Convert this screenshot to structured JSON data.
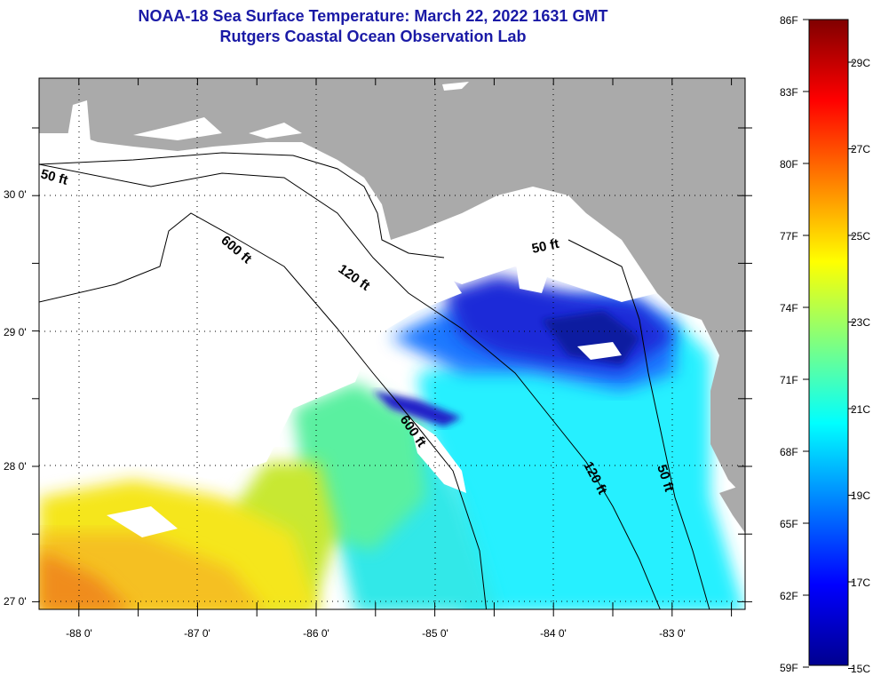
{
  "title": {
    "line1": "NOAA-18 Sea Surface Temperature:  March 22, 2022 1631 GMT",
    "line2": "Rutgers Coastal Ocean Observation Lab"
  },
  "map": {
    "lat_labels": [
      "30 0'",
      "29 0'",
      "28 0'",
      "27 0'"
    ],
    "lon_labels": [
      "-88 0'",
      "-87 0'",
      "-86 0'",
      "-85 0'",
      "-84 0'",
      "-83 0'"
    ],
    "contour_labels": [
      "50 ft",
      "600 ft",
      "120 ft",
      "50 ft",
      "600 ft",
      "120 ft",
      "50 ft"
    ],
    "land_color": "#aaaaaa",
    "cloud_color": "#ffffff"
  },
  "colorbar": {
    "f_labels": [
      "86F",
      "83F",
      "80F",
      "77F",
      "74F",
      "71F",
      "68F",
      "65F",
      "62F",
      "59F"
    ],
    "c_labels": [
      "29C",
      "27C",
      "25C",
      "23C",
      "21C",
      "19C",
      "17C",
      "15C"
    ]
  }
}
